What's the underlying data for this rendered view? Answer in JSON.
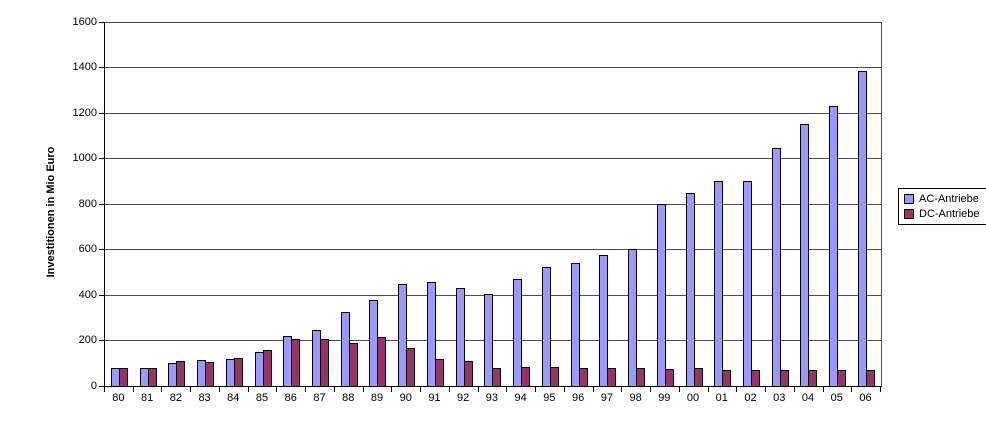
{
  "chart_data": {
    "type": "bar",
    "title": "",
    "ylabel": "Investitionen in Mio Euro",
    "xlabel": "",
    "ylim": [
      0,
      1600
    ],
    "y_tick_step": 200,
    "y_ticks": [
      0,
      200,
      400,
      600,
      800,
      1000,
      1200,
      1400,
      1600
    ],
    "categories": [
      "80",
      "81",
      "82",
      "83",
      "84",
      "85",
      "86",
      "87",
      "88",
      "89",
      "90",
      "91",
      "92",
      "93",
      "94",
      "95",
      "96",
      "97",
      "98",
      "99",
      "00",
      "01",
      "02",
      "03",
      "04",
      "05",
      "06"
    ],
    "series": [
      {
        "name": "AC-Antriebe",
        "color": "#9999FF",
        "values": [
          80,
          80,
          100,
          115,
          120,
          150,
          220,
          245,
          325,
          380,
          450,
          455,
          430,
          405,
          470,
          525,
          540,
          575,
          600,
          800,
          850,
          900,
          900,
          1045,
          1150,
          1230,
          1385
        ]
      },
      {
        "name": "DC-Antriebe",
        "color": "#993366",
        "values": [
          80,
          80,
          110,
          105,
          125,
          160,
          205,
          205,
          190,
          215,
          165,
          120,
          110,
          80,
          85,
          85,
          80,
          80,
          80,
          75,
          80,
          70,
          70,
          70,
          70,
          70,
          70
        ]
      }
    ],
    "legend_position": "right",
    "grid": true
  }
}
